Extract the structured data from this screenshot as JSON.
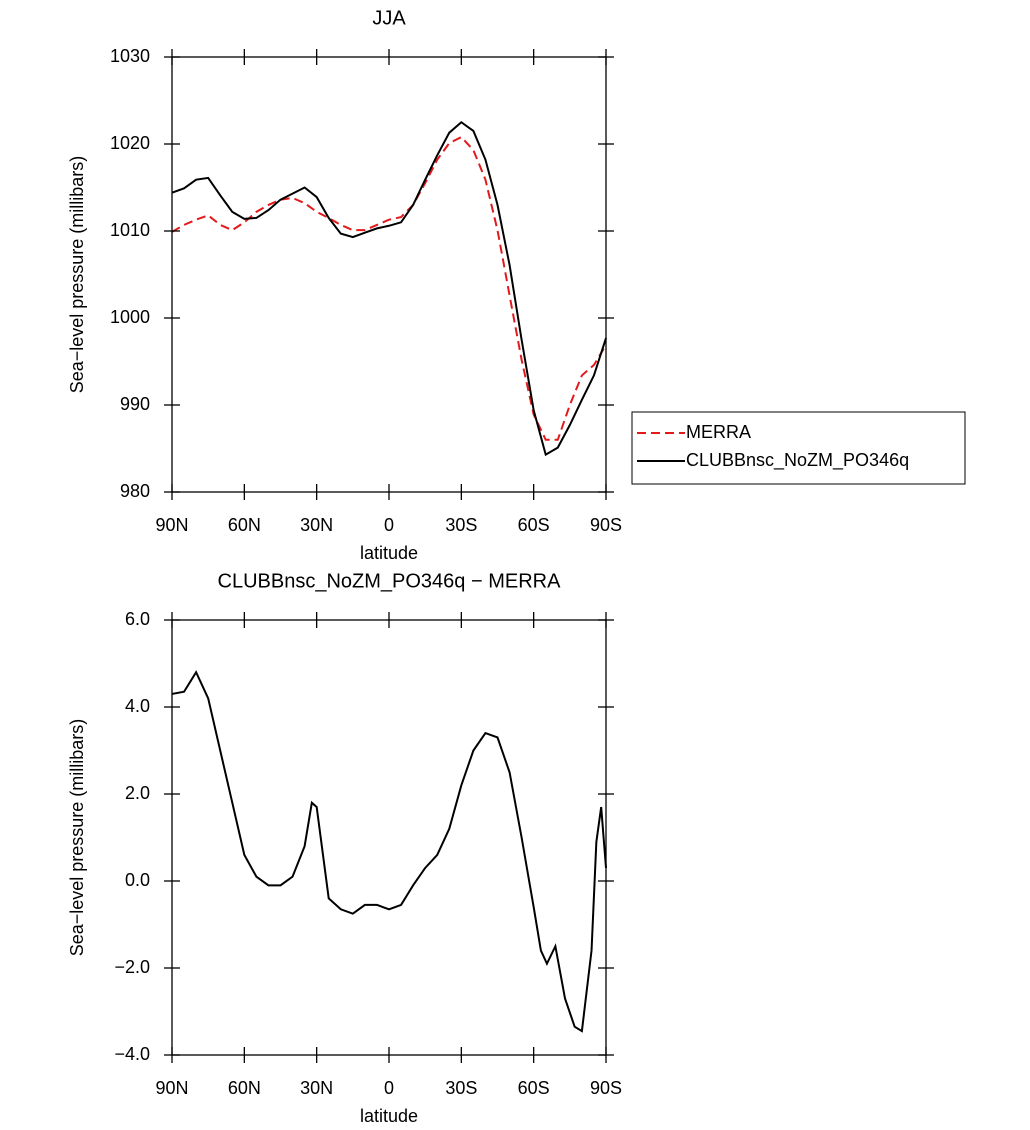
{
  "chart_data": [
    {
      "type": "line",
      "title": "JJA",
      "x_label": "latitude",
      "y_label": "Sea−level pressure (millibars)",
      "x": [
        90,
        85,
        80,
        75,
        70,
        65,
        60,
        55,
        50,
        45,
        40,
        35,
        30,
        25,
        20,
        15,
        10,
        5,
        0,
        -5,
        -10,
        -15,
        -20,
        -25,
        -30,
        -35,
        -40,
        -45,
        -50,
        -55,
        -60,
        -65,
        -70,
        -75,
        -80,
        -85,
        -90
      ],
      "series": [
        {
          "name": "MERRA",
          "color": "#e31a1c",
          "line_style": "dashed",
          "values": [
            1009.9,
            1010.7,
            1011.3,
            1011.8,
            1010.7,
            1010.1,
            1011.0,
            1012.2,
            1013.0,
            1013.6,
            1013.8,
            1013.2,
            1012.2,
            1011.5,
            1010.7,
            1010.1,
            1010.1,
            1010.7,
            1011.3,
            1011.6,
            1013.0,
            1015.5,
            1018.2,
            1020.1,
            1020.8,
            1019.3,
            1015.9,
            1010.1,
            1002.6,
            995.2,
            988.9,
            986.0,
            986.0,
            990.0,
            993.4,
            994.6,
            996.9
          ]
        },
        {
          "name": "CLUBBnsc_NoZM_PO346q",
          "color": "#000000",
          "line_style": "solid",
          "values": [
            1014.4,
            1014.9,
            1015.9,
            1016.1,
            1014.1,
            1012.2,
            1011.4,
            1011.5,
            1012.4,
            1013.6,
            1014.3,
            1015.0,
            1013.9,
            1011.5,
            1009.7,
            1009.3,
            1009.8,
            1010.3,
            1010.6,
            1011.0,
            1013.0,
            1015.9,
            1018.7,
            1021.3,
            1022.5,
            1021.5,
            1018.2,
            1013.0,
            1006.1,
            997.5,
            989.4,
            984.3,
            985.1,
            987.7,
            990.6,
            993.4,
            997.7
          ]
        }
      ],
      "xlim": [
        90,
        -90
      ],
      "xticks": [
        {
          "value": 90,
          "label": "90N"
        },
        {
          "value": 60,
          "label": "60N"
        },
        {
          "value": 30,
          "label": "30N"
        },
        0,
        {
          "value": -30,
          "label": "30S"
        },
        {
          "value": -60,
          "label": "60S"
        },
        {
          "value": -90,
          "label": "90S"
        }
      ],
      "ylim": [
        980,
        1030
      ],
      "yticks": [
        980,
        990,
        1000,
        1010,
        1020,
        1030
      ],
      "legend": "right"
    },
    {
      "type": "line",
      "title": "CLUBBnsc_NoZM_PO346q − MERRA",
      "x_label": "latitude",
      "y_label": "Sea−level pressure (millibars)",
      "x": [
        90,
        85,
        80,
        75,
        70,
        65,
        60,
        55,
        50,
        45,
        40,
        35,
        32,
        30,
        25,
        20,
        15,
        10,
        5,
        0,
        -5,
        -10,
        -15,
        -20,
        -25,
        -30,
        -35,
        -40,
        -45,
        -50,
        -55,
        -60,
        -63,
        -65.5,
        -69,
        -73,
        -77,
        -80,
        -84,
        -86,
        -88,
        -90
      ],
      "series": [
        {
          "name": "CLUBBnsc_NoZM_PO346q − MERRA",
          "color": "#000000",
          "line_style": "solid",
          "values": [
            4.3,
            4.35,
            4.8,
            4.2,
            3.0,
            1.8,
            0.6,
            0.1,
            -0.1,
            -0.1,
            0.1,
            0.8,
            1.8,
            1.7,
            -0.4,
            -0.65,
            -0.75,
            -0.55,
            -0.55,
            -0.65,
            -0.55,
            -0.1,
            0.3,
            0.6,
            1.2,
            2.2,
            3.0,
            3.4,
            3.3,
            2.5,
            1.0,
            -0.6,
            -1.6,
            -1.9,
            -1.5,
            -2.7,
            -3.35,
            -3.45,
            -1.6,
            0.9,
            1.7,
            0.3
          ]
        }
      ],
      "xlim": [
        90,
        -90
      ],
      "xticks": [
        {
          "value": 90,
          "label": "90N"
        },
        {
          "value": 60,
          "label": "60N"
        },
        {
          "value": 30,
          "label": "30N"
        },
        0,
        {
          "value": -30,
          "label": "30S"
        },
        {
          "value": -60,
          "label": "60S"
        },
        {
          "value": -90,
          "label": "90S"
        }
      ],
      "ylim": [
        -4,
        6
      ],
      "yticks": [
        {
          "value": -4,
          "label": "−4.0"
        },
        {
          "value": -2,
          "label": "−2.0"
        },
        {
          "value": 0,
          "label": "0.0"
        },
        {
          "value": 2,
          "label": "2.0"
        },
        {
          "value": 4,
          "label": "4.0"
        },
        {
          "value": 6,
          "label": "6.0"
        }
      ]
    }
  ]
}
